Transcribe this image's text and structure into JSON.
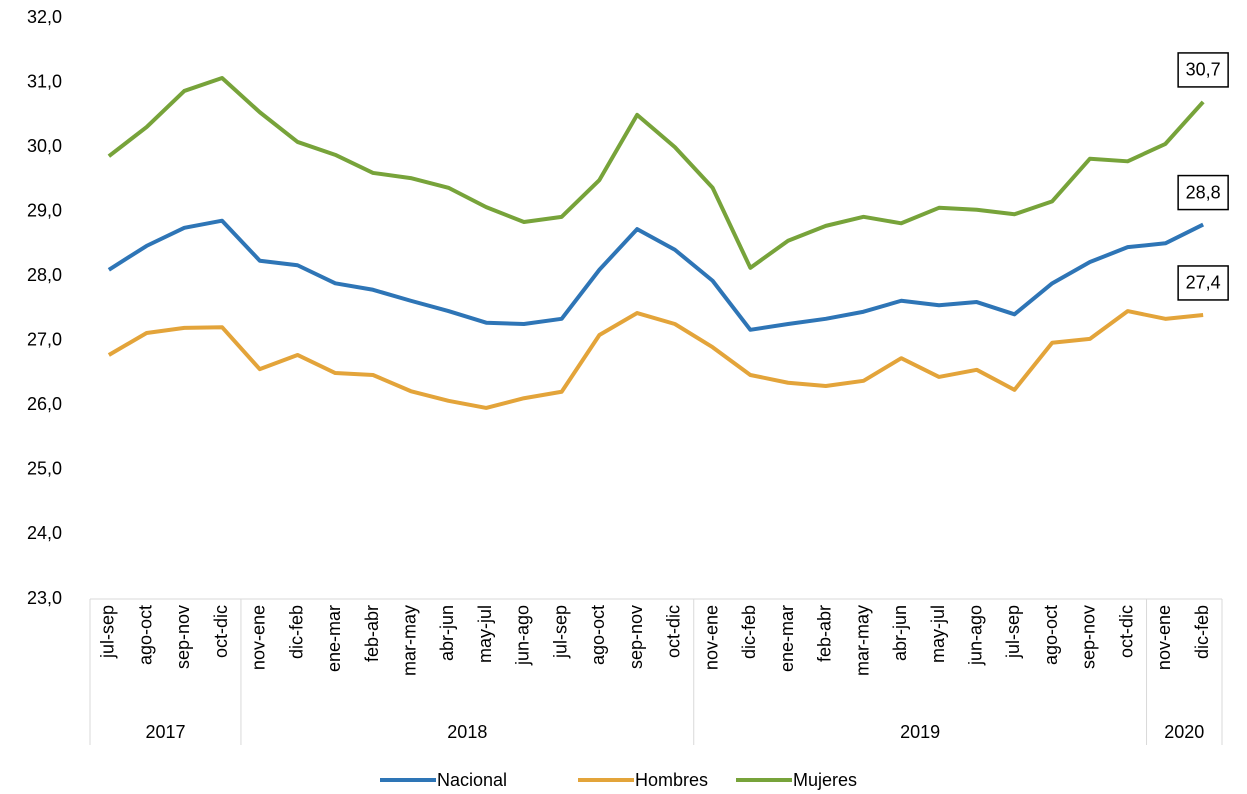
{
  "chart_data": {
    "type": "line",
    "categories": [
      "jul-sep",
      "ago-oct",
      "sep-nov",
      "oct-dic",
      "nov-ene",
      "dic-feb",
      "ene-mar",
      "feb-abr",
      "mar-may",
      "abr-jun",
      "may-jul",
      "jun-ago",
      "jul-sep",
      "ago-oct",
      "sep-nov",
      "oct-dic",
      "nov-ene",
      "dic-feb",
      "ene-mar",
      "feb-abr",
      "mar-may",
      "abr-jun",
      "may-jul",
      "jun-ago",
      "jul-sep",
      "ago-oct",
      "sep-nov",
      "oct-dic",
      "nov-ene",
      "dic-feb"
    ],
    "groups": [
      {
        "label": "2017",
        "count": 4
      },
      {
        "label": "2018",
        "count": 12
      },
      {
        "label": "2019",
        "count": 12
      },
      {
        "label": "2020",
        "count": 2
      }
    ],
    "series": [
      {
        "name": "Nacional",
        "color": "#2e75b6",
        "values": [
          28.1,
          28.47,
          28.75,
          28.86,
          28.24,
          28.17,
          27.89,
          27.79,
          27.62,
          27.46,
          27.28,
          27.26,
          27.34,
          28.1,
          28.73,
          28.41,
          27.93,
          27.17,
          27.26,
          27.34,
          27.45,
          27.62,
          27.55,
          27.6,
          27.41,
          27.89,
          28.22,
          28.45,
          28.51,
          28.8
        ],
        "value_labels": [
          null,
          null,
          null,
          null,
          null,
          null,
          null,
          null,
          null,
          null,
          null,
          null,
          null,
          null,
          null,
          null,
          null,
          null,
          null,
          null,
          null,
          null,
          null,
          null,
          null,
          null,
          null,
          null,
          null,
          "28,8"
        ]
      },
      {
        "name": "Hombres",
        "color": "#e3a43a",
        "values": [
          26.78,
          27.12,
          27.2,
          27.21,
          26.56,
          26.78,
          26.5,
          26.47,
          26.22,
          26.07,
          25.96,
          26.11,
          26.21,
          27.09,
          27.43,
          27.26,
          26.9,
          26.47,
          26.35,
          26.3,
          26.38,
          26.73,
          26.44,
          26.55,
          26.24,
          26.97,
          27.03,
          27.46,
          27.34,
          27.4
        ],
        "value_labels": [
          null,
          null,
          null,
          null,
          null,
          null,
          null,
          null,
          null,
          null,
          null,
          null,
          null,
          null,
          null,
          null,
          null,
          null,
          null,
          null,
          null,
          null,
          null,
          null,
          null,
          null,
          null,
          null,
          null,
          "27,4"
        ]
      },
      {
        "name": "Mujeres",
        "color": "#77a33a",
        "values": [
          29.86,
          30.31,
          30.87,
          31.07,
          30.54,
          30.08,
          29.88,
          29.6,
          29.52,
          29.37,
          29.07,
          28.84,
          28.92,
          29.49,
          30.5,
          30.0,
          29.37,
          28.13,
          28.55,
          28.78,
          28.92,
          28.82,
          29.06,
          29.03,
          28.96,
          29.16,
          29.82,
          29.78,
          30.05,
          30.7
        ],
        "value_labels": [
          null,
          null,
          null,
          null,
          null,
          null,
          null,
          null,
          null,
          null,
          null,
          null,
          null,
          null,
          null,
          null,
          null,
          null,
          null,
          null,
          null,
          null,
          null,
          null,
          null,
          null,
          null,
          null,
          null,
          "30,7"
        ]
      }
    ],
    "ylim": [
      23,
      32
    ],
    "yticks": [
      {
        "value": 23,
        "label": "23,0"
      },
      {
        "value": 24,
        "label": "24,0"
      },
      {
        "value": 25,
        "label": "25,0"
      },
      {
        "value": 26,
        "label": "26,0"
      },
      {
        "value": 27,
        "label": "27,0"
      },
      {
        "value": 28,
        "label": "28,0"
      },
      {
        "value": 29,
        "label": "29,0"
      },
      {
        "value": 30,
        "label": "30,0"
      },
      {
        "value": 31,
        "label": "31,0"
      },
      {
        "value": 32,
        "label": "32,0"
      }
    ],
    "grid": false,
    "legend": "bottom"
  }
}
